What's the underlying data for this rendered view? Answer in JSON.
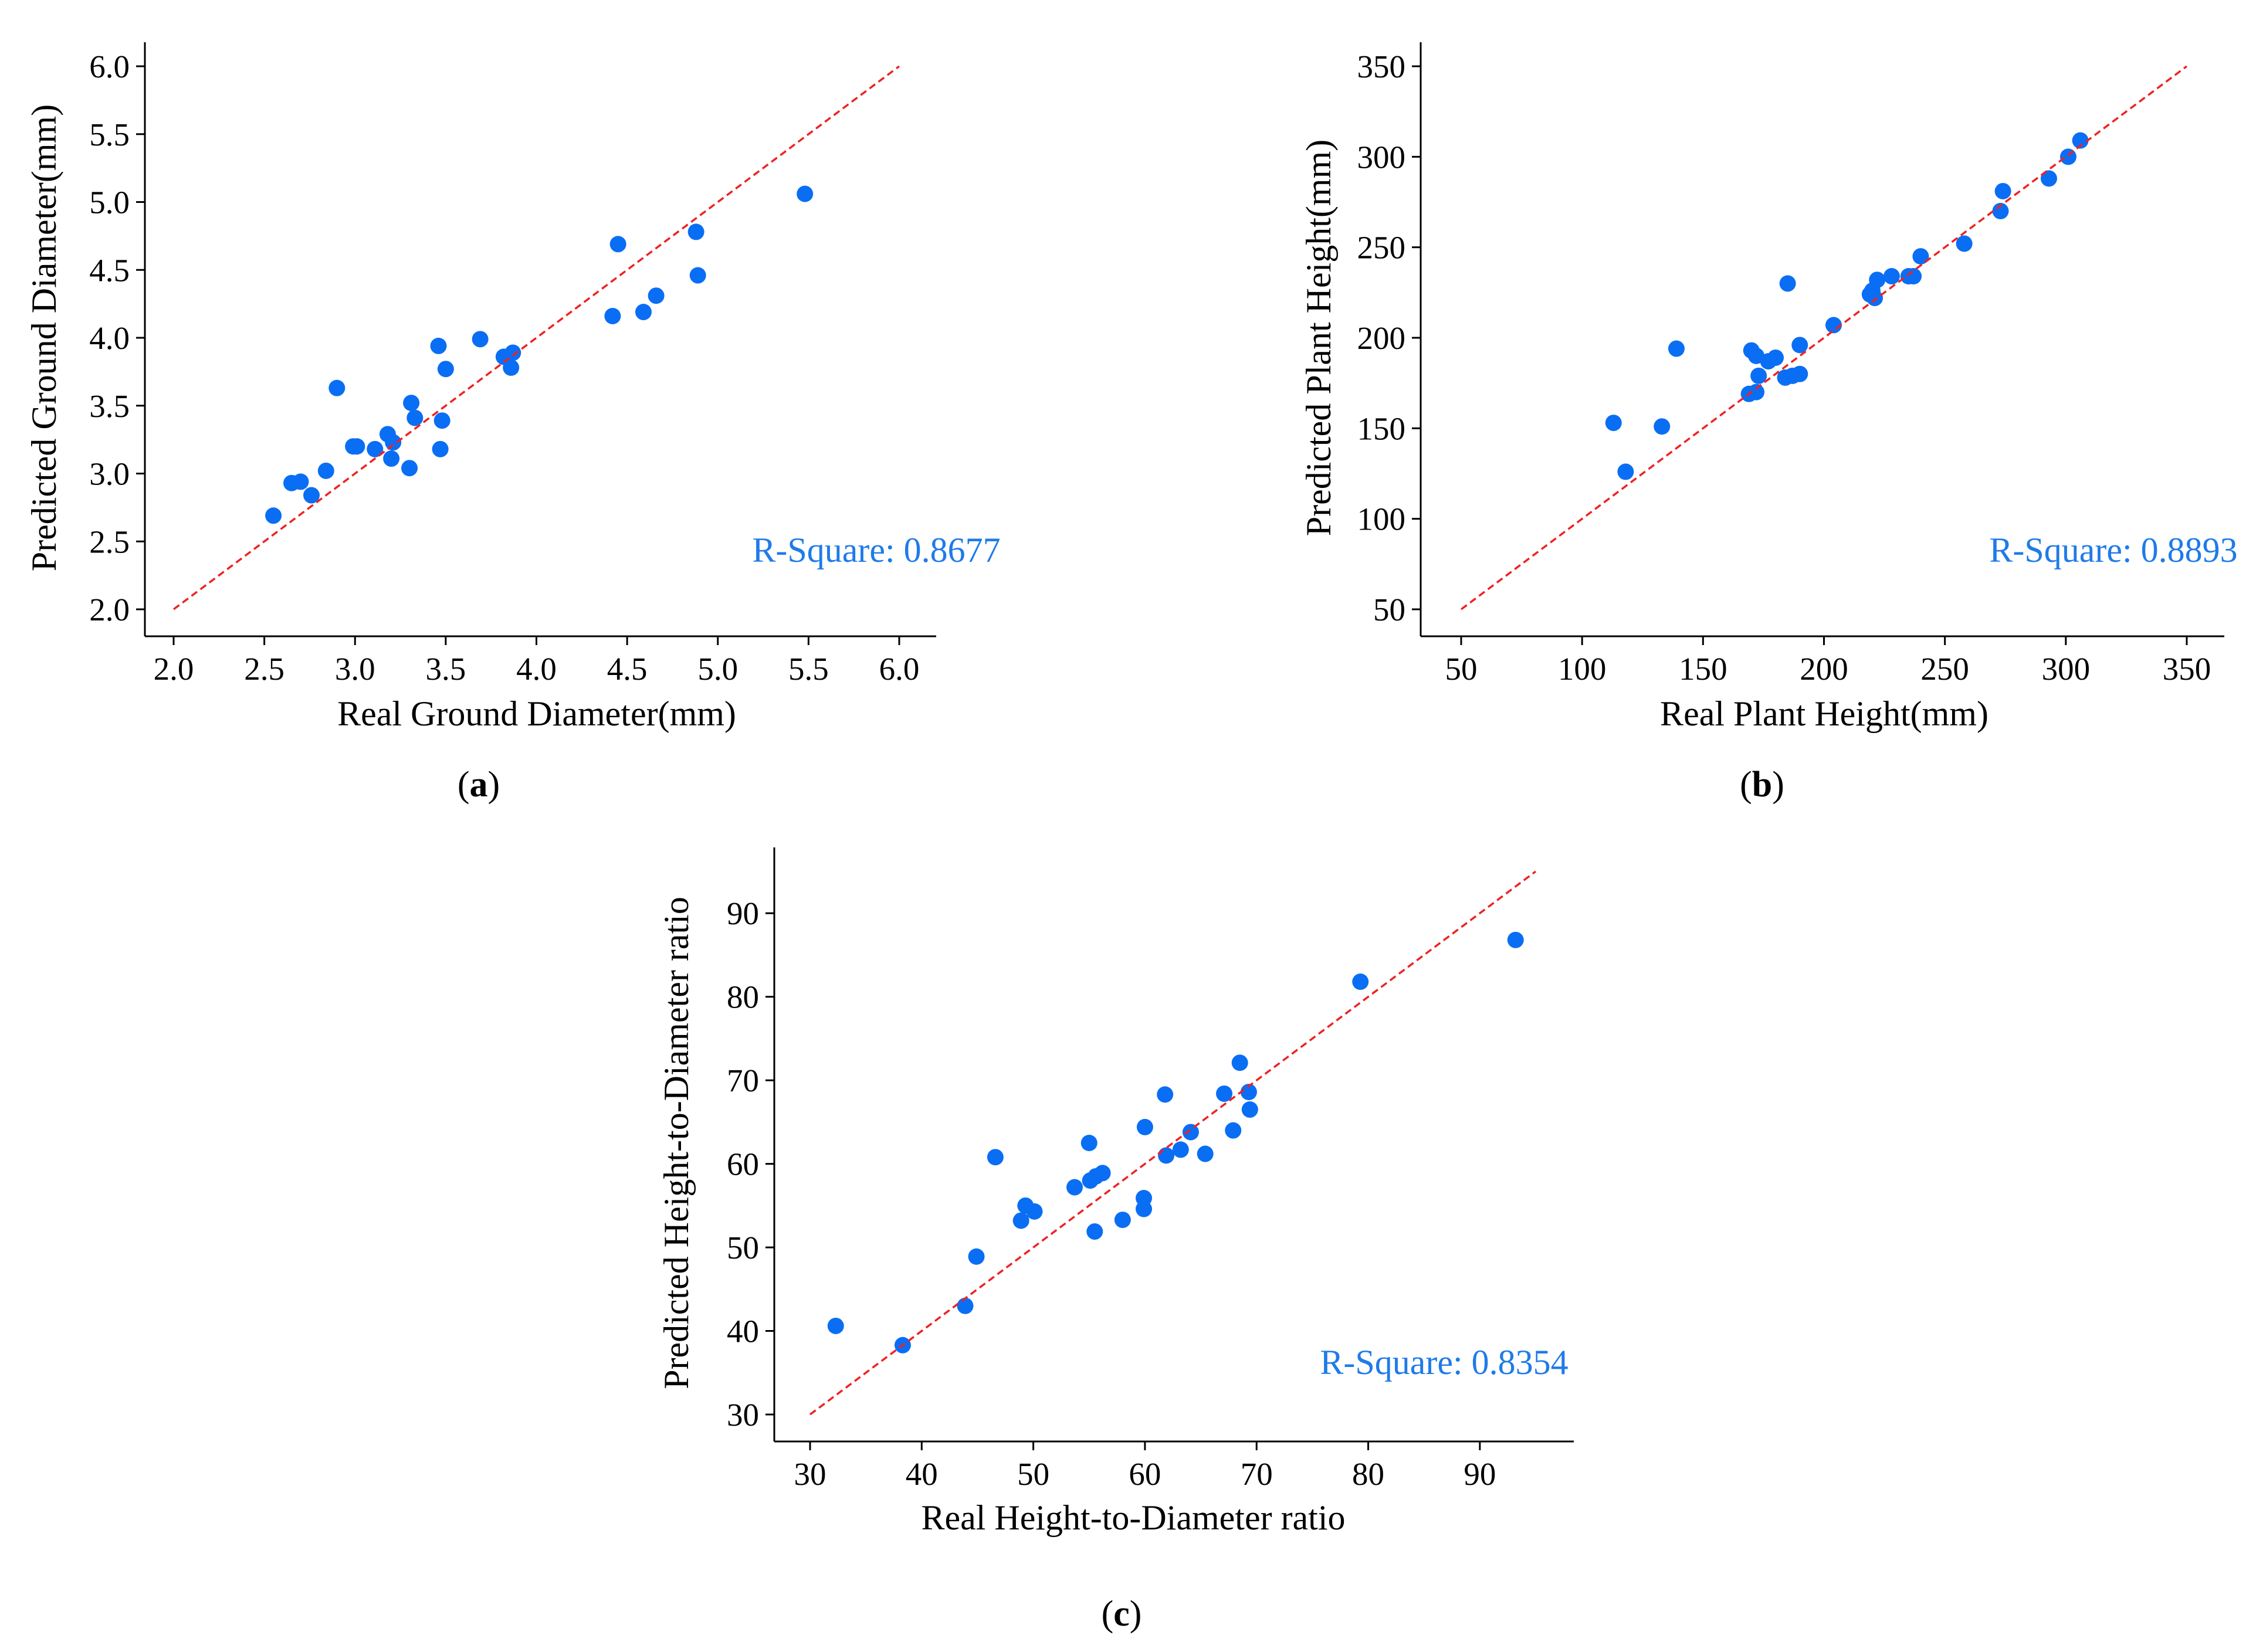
{
  "colors": {
    "point": "#0a6ef4",
    "reference_line": "#ee2222",
    "annotation": "#1f7be8",
    "axis": "#000000"
  },
  "chart_data": [
    {
      "type": "scatter",
      "panel": "a",
      "xlabel": "Real Ground Diameter(mm)",
      "ylabel": "Predicted Ground Diameter(mm)",
      "xlim": [
        2.0,
        6.0
      ],
      "ylim": [
        2.0,
        6.0
      ],
      "xticks": [
        "2.0",
        "2.5",
        "3.0",
        "3.5",
        "4.0",
        "4.5",
        "5.0",
        "5.5",
        "6.0"
      ],
      "yticks": [
        "2.0",
        "2.5",
        "3.0",
        "3.5",
        "4.0",
        "4.5",
        "5.0",
        "5.5",
        "6.0"
      ],
      "reference_line": [
        [
          2.0,
          2.0
        ],
        [
          6.0,
          6.0
        ]
      ],
      "annotation": "R-Square: 0.8677",
      "grid": false,
      "x": [
        2.55,
        2.65,
        2.7,
        2.76,
        2.84,
        2.9,
        2.99,
        3.01,
        3.11,
        3.18,
        3.2,
        3.21,
        3.3,
        3.31,
        3.33,
        3.46,
        3.47,
        3.48,
        3.5,
        3.69,
        3.82,
        3.86,
        3.87,
        4.42,
        4.45,
        4.59,
        4.66,
        4.88,
        4.89,
        5.48
      ],
      "y": [
        2.69,
        2.93,
        2.94,
        2.84,
        3.02,
        3.63,
        3.2,
        3.2,
        3.18,
        3.29,
        3.11,
        3.23,
        3.04,
        3.52,
        3.41,
        3.94,
        3.18,
        3.39,
        3.77,
        3.99,
        3.86,
        3.78,
        3.89,
        4.16,
        4.69,
        4.19,
        4.31,
        4.78,
        4.46,
        5.06
      ]
    },
    {
      "type": "scatter",
      "panel": "b",
      "xlabel": "Real Plant Height(mm)",
      "ylabel": "Predicted Plant Height(mm)",
      "xlim": [
        50,
        350
      ],
      "ylim": [
        50,
        350
      ],
      "xticks": [
        "50",
        "100",
        "150",
        "200",
        "250",
        "300",
        "350"
      ],
      "yticks": [
        "50",
        "100",
        "150",
        "200",
        "250",
        "300",
        "350"
      ],
      "reference_line": [
        [
          50,
          50
        ],
        [
          350,
          350
        ]
      ],
      "annotation": "R-Square: 0.8893",
      "grid": false,
      "x": [
        113,
        118,
        133,
        139,
        169,
        170,
        172,
        172,
        173,
        177,
        180,
        184,
        185,
        187,
        190,
        190,
        204,
        219,
        220,
        221,
        222,
        228,
        235,
        237,
        240,
        258,
        273,
        274,
        293,
        301,
        306
      ],
      "y": [
        153,
        126,
        151,
        194,
        169,
        193,
        190,
        170,
        179,
        187,
        189,
        178,
        230,
        179,
        180,
        196,
        207,
        224,
        226,
        222,
        232,
        234,
        234,
        234,
        245,
        252,
        270,
        281,
        288,
        300,
        309
      ]
    },
    {
      "type": "scatter",
      "panel": "c",
      "xlabel": "Real Height-to-Diameter ratio",
      "ylabel": "Predicted Height-to-Diameter ratio",
      "xlim": [
        30,
        95
      ],
      "ylim": [
        30,
        95
      ],
      "xticks": [
        "30",
        "40",
        "50",
        "60",
        "70",
        "80",
        "90"
      ],
      "yticks": [
        "30",
        "40",
        "50",
        "60",
        "70",
        "80",
        "90"
      ],
      "reference_line": [
        [
          30,
          30
        ],
        [
          95,
          95
        ]
      ],
      "annotation": "R-Square: 0.8354",
      "grid": false,
      "x": [
        32.3,
        38.3,
        43.9,
        44.9,
        46.6,
        48.9,
        49.3,
        50.1,
        53.7,
        55.0,
        55.1,
        55.5,
        55.6,
        56.2,
        58.0,
        59.9,
        59.9,
        60.0,
        61.8,
        61.9,
        63.2,
        64.1,
        65.4,
        67.1,
        67.9,
        68.5,
        69.3,
        69.4,
        79.3,
        93.2
      ],
      "y": [
        40.6,
        38.3,
        43.0,
        48.9,
        60.8,
        53.2,
        55.0,
        54.3,
        57.2,
        62.5,
        58.0,
        51.9,
        58.5,
        58.9,
        53.3,
        54.6,
        55.9,
        64.4,
        68.3,
        61.0,
        61.7,
        63.8,
        61.2,
        68.4,
        64.0,
        72.1,
        68.6,
        66.5,
        81.8,
        86.8
      ]
    }
  ],
  "panel_labels": [
    {
      "open": "(",
      "letter": "a",
      "close": ")"
    },
    {
      "open": "(",
      "letter": "b",
      "close": ")"
    },
    {
      "open": "(",
      "letter": "c",
      "close": ")"
    }
  ]
}
